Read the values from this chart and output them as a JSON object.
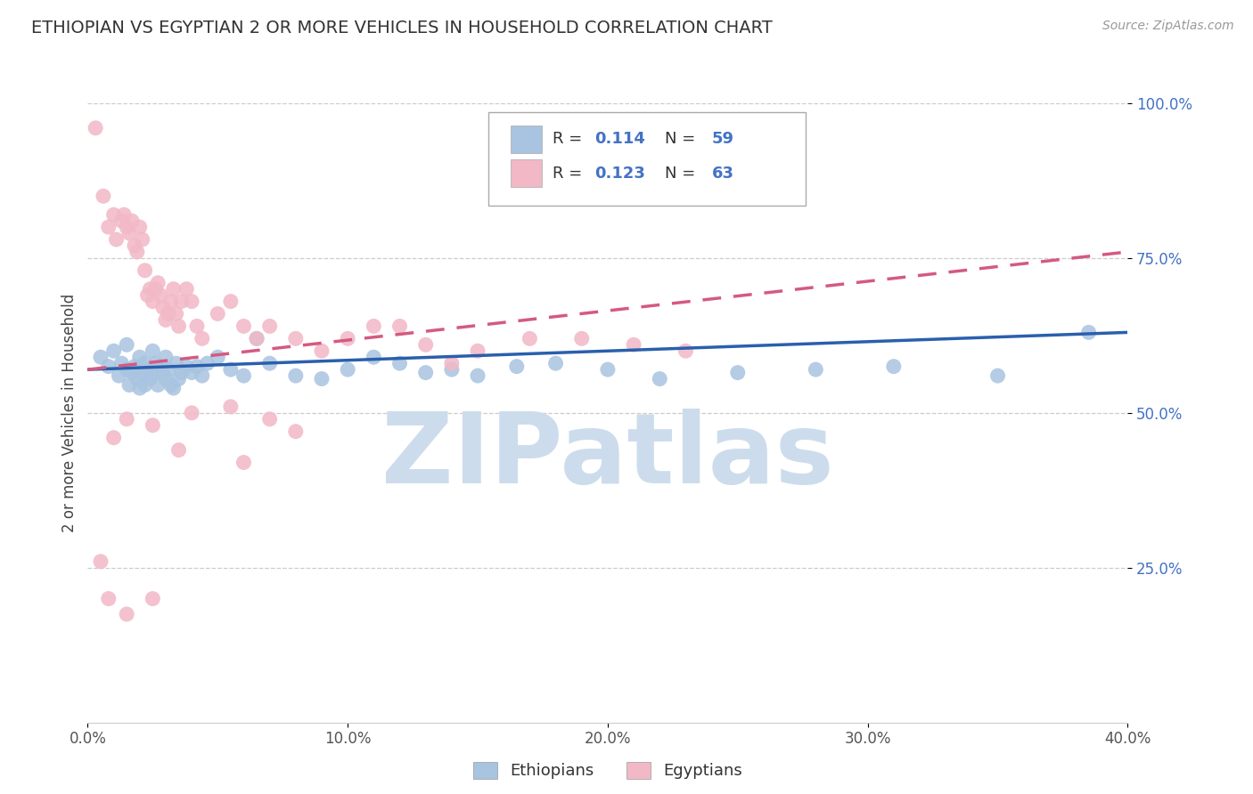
{
  "title": "ETHIOPIAN VS EGYPTIAN 2 OR MORE VEHICLES IN HOUSEHOLD CORRELATION CHART",
  "source_text": "Source: ZipAtlas.com",
  "ylabel": "2 or more Vehicles in Household",
  "xlim": [
    0.0,
    0.4
  ],
  "ylim": [
    0.0,
    1.0
  ],
  "xtick_labels": [
    "0.0%",
    "10.0%",
    "20.0%",
    "30.0%",
    "40.0%"
  ],
  "xtick_vals": [
    0.0,
    0.1,
    0.2,
    0.3,
    0.4
  ],
  "ytick_labels": [
    "25.0%",
    "50.0%",
    "75.0%",
    "100.0%"
  ],
  "ytick_vals": [
    0.25,
    0.5,
    0.75,
    1.0
  ],
  "blue_color": "#a8c4e0",
  "pink_color": "#f2b8c6",
  "blue_line_color": "#2a5fad",
  "pink_line_color": "#d45a80",
  "title_color": "#333333",
  "watermark_color": "#cddcec",
  "watermark_text": "ZIPatlas",
  "ytick_color": "#4472c4",
  "ethiopians_x": [
    0.005,
    0.008,
    0.01,
    0.012,
    0.013,
    0.015,
    0.015,
    0.016,
    0.017,
    0.018,
    0.019,
    0.02,
    0.02,
    0.021,
    0.022,
    0.022,
    0.023,
    0.024,
    0.025,
    0.025,
    0.026,
    0.027,
    0.028,
    0.029,
    0.03,
    0.03,
    0.031,
    0.032,
    0.033,
    0.034,
    0.035,
    0.036,
    0.038,
    0.04,
    0.042,
    0.044,
    0.046,
    0.05,
    0.055,
    0.06,
    0.065,
    0.07,
    0.08,
    0.09,
    0.1,
    0.11,
    0.12,
    0.13,
    0.14,
    0.15,
    0.165,
    0.18,
    0.2,
    0.22,
    0.25,
    0.28,
    0.31,
    0.35,
    0.385
  ],
  "ethiopians_y": [
    0.59,
    0.575,
    0.6,
    0.56,
    0.58,
    0.57,
    0.61,
    0.545,
    0.565,
    0.575,
    0.555,
    0.54,
    0.59,
    0.56,
    0.58,
    0.545,
    0.57,
    0.555,
    0.565,
    0.6,
    0.58,
    0.545,
    0.575,
    0.565,
    0.555,
    0.59,
    0.57,
    0.545,
    0.54,
    0.58,
    0.555,
    0.565,
    0.575,
    0.565,
    0.575,
    0.56,
    0.58,
    0.59,
    0.57,
    0.56,
    0.62,
    0.58,
    0.56,
    0.555,
    0.57,
    0.59,
    0.58,
    0.565,
    0.57,
    0.56,
    0.575,
    0.58,
    0.57,
    0.555,
    0.565,
    0.57,
    0.575,
    0.56,
    0.63
  ],
  "egyptians_x": [
    0.003,
    0.006,
    0.008,
    0.01,
    0.011,
    0.013,
    0.014,
    0.015,
    0.016,
    0.017,
    0.018,
    0.019,
    0.02,
    0.021,
    0.022,
    0.023,
    0.024,
    0.025,
    0.026,
    0.027,
    0.028,
    0.029,
    0.03,
    0.031,
    0.032,
    0.033,
    0.034,
    0.035,
    0.036,
    0.038,
    0.04,
    0.042,
    0.044,
    0.05,
    0.055,
    0.06,
    0.065,
    0.07,
    0.08,
    0.09,
    0.1,
    0.11,
    0.12,
    0.13,
    0.14,
    0.15,
    0.17,
    0.19,
    0.21,
    0.23,
    0.08,
    0.07,
    0.055,
    0.04,
    0.025,
    0.015,
    0.01,
    0.005,
    0.008,
    0.06,
    0.035,
    0.025,
    0.015
  ],
  "egyptians_y": [
    0.96,
    0.85,
    0.8,
    0.82,
    0.78,
    0.81,
    0.82,
    0.8,
    0.79,
    0.81,
    0.77,
    0.76,
    0.8,
    0.78,
    0.73,
    0.69,
    0.7,
    0.68,
    0.7,
    0.71,
    0.69,
    0.67,
    0.65,
    0.66,
    0.68,
    0.7,
    0.66,
    0.64,
    0.68,
    0.7,
    0.68,
    0.64,
    0.62,
    0.66,
    0.68,
    0.64,
    0.62,
    0.64,
    0.62,
    0.6,
    0.62,
    0.64,
    0.64,
    0.61,
    0.58,
    0.6,
    0.62,
    0.62,
    0.61,
    0.6,
    0.47,
    0.49,
    0.51,
    0.5,
    0.48,
    0.49,
    0.46,
    0.26,
    0.2,
    0.42,
    0.44,
    0.2,
    0.175
  ],
  "eth_line_x0": 0.0,
  "eth_line_y0": 0.57,
  "eth_line_x1": 0.4,
  "eth_line_y1": 0.63,
  "egy_line_x0": 0.0,
  "egy_line_y0": 0.57,
  "egy_line_x1": 0.4,
  "egy_line_y1": 0.76
}
